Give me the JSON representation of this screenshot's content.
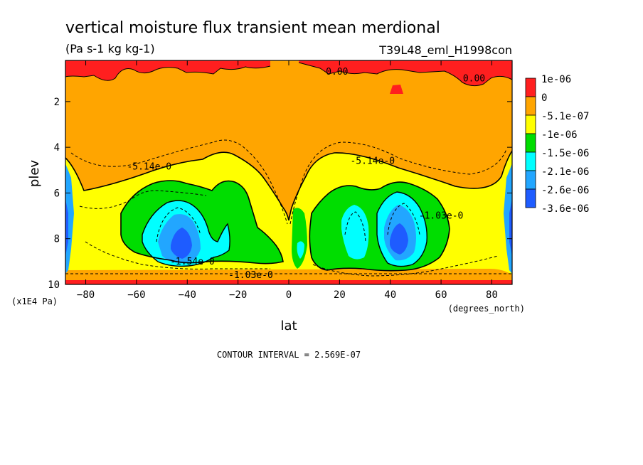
{
  "chart_data": {
    "type": "heatmap",
    "title": "vertical moisture flux transient mean merdional",
    "units": "(Pa s-1 kg kg-1)",
    "run_label": "T39L48_eml_H1998con",
    "xlabel": "lat",
    "x_units": "(degrees_north)",
    "ylabel": "plev",
    "y_units": "(x1E4 Pa)",
    "xlim": [
      -88,
      88
    ],
    "ylim": [
      10,
      0.2
    ],
    "x_ticks": [
      -80,
      -60,
      -40,
      -20,
      0,
      20,
      40,
      60,
      80
    ],
    "y_ticks": [
      2,
      4,
      6,
      8,
      10
    ],
    "contour_interval": "CONTOUR INTERVAL = 2.569E-07",
    "legend": {
      "placement": "right",
      "levels": [
        {
          "label": "1e-06",
          "color": "#ff1f1f"
        },
        {
          "label": "0",
          "color": "#ffa500"
        },
        {
          "label": "-5.1e-07",
          "color": "#ffff00"
        },
        {
          "label": "-1e-06",
          "color": "#00dd00"
        },
        {
          "label": "-1.5e-06",
          "color": "#00ffff"
        },
        {
          "label": "-2.1e-06",
          "color": "#22a6ff"
        },
        {
          "label": "-2.6e-06",
          "color": "#1e5cff"
        },
        {
          "label": "-3.6e-06",
          "color": ""
        }
      ]
    },
    "contour_labels": [
      {
        "text": "0.00",
        "lat": 19,
        "plev": 0.7
      },
      {
        "text": "0.00",
        "lat": 73,
        "plev": 1.0
      },
      {
        "text": "-5.14e-0",
        "lat": -55,
        "plev": 4.85
      },
      {
        "text": "-5.14e-0",
        "lat": 33,
        "plev": 4.6
      },
      {
        "text": "-1.03e-0",
        "lat": 60,
        "plev": 7.0
      },
      {
        "text": "-1.54e-0",
        "lat": -38,
        "plev": 9.0
      },
      {
        "text": "-1.03e-0",
        "lat": -15,
        "plev": 9.6
      }
    ]
  }
}
